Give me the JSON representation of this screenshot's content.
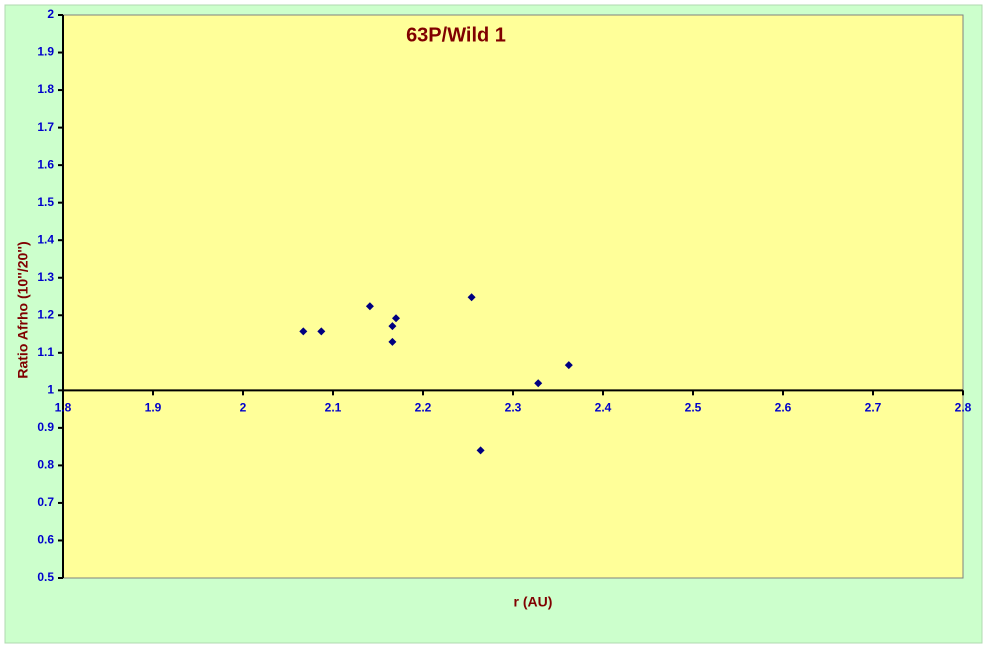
{
  "chart_data": {
    "type": "scatter",
    "title": "63P/Wild 1",
    "x_label": "r (AU)",
    "y_label": "Ratio Afrho (10''/20'')",
    "color": "#000080",
    "x": [
      2.067,
      2.087,
      2.141,
      2.166,
      2.17,
      2.166,
      2.254,
      2.264,
      2.328,
      2.362
    ],
    "values": [
      1.157,
      1.157,
      1.224,
      1.171,
      1.192,
      1.129,
      1.248,
      0.84,
      1.019,
      1.067
    ],
    "xlim": [
      1.8,
      2.8
    ],
    "ylim": [
      0.5,
      2
    ],
    "xticks": [
      1.8,
      1.9,
      2,
      2.1,
      2.2,
      2.3,
      2.4,
      2.5,
      2.6,
      2.7,
      2.8
    ],
    "yticks": [
      0.5,
      0.6,
      0.7,
      0.8,
      0.9,
      1,
      1.1,
      1.2,
      1.3,
      1.4,
      1.5,
      1.6,
      1.7,
      1.8,
      1.9,
      2
    ],
    "x_axis_crosses_at": 1,
    "grid": false
  }
}
